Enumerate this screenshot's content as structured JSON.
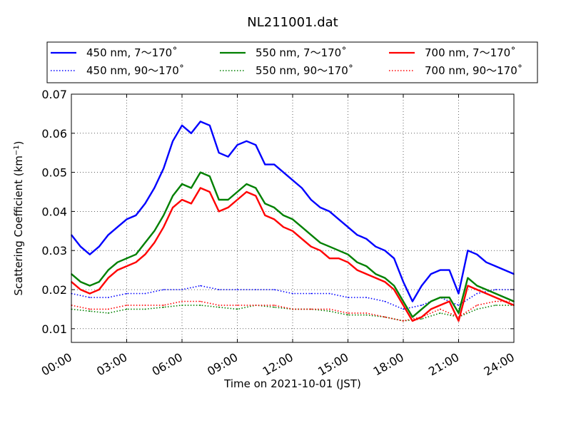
{
  "chart_data": {
    "type": "line",
    "title": "NL211001.dat",
    "xlabel": "Time on 2021-10-01 (JST)",
    "ylabel_main": "Scattering Coefficient (km",
    "ylabel_sup": "−1",
    "ylabel_close": ")",
    "x_axis": {
      "unit": "hour",
      "range": [
        0,
        24
      ],
      "ticks": [
        0,
        3,
        6,
        9,
        12,
        15,
        18,
        21,
        24
      ],
      "tick_labels": [
        "00:00",
        "03:00",
        "06:00",
        "09:00",
        "12:00",
        "15:00",
        "18:00",
        "21:00",
        "24:00"
      ]
    },
    "y_axis": {
      "range": [
        0.0065,
        0.07
      ],
      "ticks": [
        0.01,
        0.02,
        0.03,
        0.04,
        0.05,
        0.06,
        0.07
      ],
      "tick_labels": [
        "0.01",
        "0.02",
        "0.03",
        "0.04",
        "0.05",
        "0.06",
        "0.07"
      ]
    },
    "grid": true,
    "legend": {
      "placement": "top",
      "columns": 3
    },
    "series": [
      {
        "name": "450 nm, 7～170˚",
        "color": "#0000ff",
        "style": "solid",
        "x": [
          0,
          0.5,
          1,
          1.5,
          2,
          2.5,
          3,
          3.5,
          4,
          4.5,
          5,
          5.5,
          6,
          6.5,
          7,
          7.5,
          8,
          8.5,
          9,
          9.5,
          10,
          10.5,
          11,
          11.5,
          12,
          12.5,
          13,
          13.5,
          14,
          14.5,
          15,
          15.5,
          16,
          16.5,
          17,
          17.5,
          18,
          18.5,
          19,
          19.5,
          20,
          20.5,
          21,
          21.5,
          22,
          22.5,
          23,
          23.5,
          24
        ],
        "y": [
          0.034,
          0.031,
          0.029,
          0.031,
          0.034,
          0.036,
          0.038,
          0.039,
          0.042,
          0.046,
          0.051,
          0.058,
          0.062,
          0.06,
          0.063,
          0.062,
          0.055,
          0.054,
          0.057,
          0.058,
          0.057,
          0.052,
          0.052,
          0.05,
          0.048,
          0.046,
          0.043,
          0.041,
          0.04,
          0.038,
          0.036,
          0.034,
          0.033,
          0.031,
          0.03,
          0.028,
          0.022,
          0.017,
          0.021,
          0.024,
          0.025,
          0.025,
          0.019,
          0.03,
          0.029,
          0.027,
          0.026,
          0.025,
          0.024
        ]
      },
      {
        "name": "550 nm, 7～170˚",
        "color": "#008000",
        "style": "solid",
        "x": [
          0,
          0.5,
          1,
          1.5,
          2,
          2.5,
          3,
          3.5,
          4,
          4.5,
          5,
          5.5,
          6,
          6.5,
          7,
          7.5,
          8,
          8.5,
          9,
          9.5,
          10,
          10.5,
          11,
          11.5,
          12,
          12.5,
          13,
          13.5,
          14,
          14.5,
          15,
          15.5,
          16,
          16.5,
          17,
          17.5,
          18,
          18.5,
          19,
          19.5,
          20,
          20.5,
          21,
          21.5,
          22,
          22.5,
          23,
          23.5,
          24
        ],
        "y": [
          0.024,
          0.022,
          0.021,
          0.022,
          0.025,
          0.027,
          0.028,
          0.029,
          0.032,
          0.035,
          0.039,
          0.044,
          0.047,
          0.046,
          0.05,
          0.049,
          0.043,
          0.043,
          0.045,
          0.047,
          0.046,
          0.042,
          0.041,
          0.039,
          0.038,
          0.036,
          0.034,
          0.032,
          0.031,
          0.03,
          0.029,
          0.027,
          0.026,
          0.024,
          0.023,
          0.021,
          0.017,
          0.013,
          0.015,
          0.017,
          0.018,
          0.018,
          0.014,
          0.023,
          0.021,
          0.02,
          0.019,
          0.018,
          0.017
        ]
      },
      {
        "name": "700 nm, 7～170˚",
        "color": "#ff0000",
        "style": "solid",
        "x": [
          0,
          0.5,
          1,
          1.5,
          2,
          2.5,
          3,
          3.5,
          4,
          4.5,
          5,
          5.5,
          6,
          6.5,
          7,
          7.5,
          8,
          8.5,
          9,
          9.5,
          10,
          10.5,
          11,
          11.5,
          12,
          12.5,
          13,
          13.5,
          14,
          14.5,
          15,
          15.5,
          16,
          16.5,
          17,
          17.5,
          18,
          18.5,
          19,
          19.5,
          20,
          20.5,
          21,
          21.5,
          22,
          22.5,
          23,
          23.5,
          24
        ],
        "y": [
          0.022,
          0.02,
          0.019,
          0.02,
          0.023,
          0.025,
          0.026,
          0.027,
          0.029,
          0.032,
          0.036,
          0.041,
          0.043,
          0.042,
          0.046,
          0.045,
          0.04,
          0.041,
          0.043,
          0.045,
          0.044,
          0.039,
          0.038,
          0.036,
          0.035,
          0.033,
          0.031,
          0.03,
          0.028,
          0.028,
          0.027,
          0.025,
          0.024,
          0.023,
          0.022,
          0.02,
          0.016,
          0.012,
          0.013,
          0.015,
          0.016,
          0.017,
          0.012,
          0.021,
          0.02,
          0.019,
          0.018,
          0.017,
          0.016
        ]
      },
      {
        "name": "450 nm, 90～170˚",
        "color": "#0000ff",
        "style": "dotted",
        "x": [
          0,
          1,
          2,
          3,
          4,
          5,
          6,
          7,
          8,
          9,
          10,
          11,
          12,
          13,
          14,
          15,
          16,
          17,
          18,
          19,
          20,
          21,
          22,
          23,
          24
        ],
        "y": [
          0.019,
          0.018,
          0.018,
          0.019,
          0.019,
          0.02,
          0.02,
          0.021,
          0.02,
          0.02,
          0.02,
          0.02,
          0.019,
          0.019,
          0.019,
          0.018,
          0.018,
          0.017,
          0.015,
          0.016,
          0.018,
          0.016,
          0.019,
          0.02,
          0.02
        ]
      },
      {
        "name": "550 nm, 90～170˚",
        "color": "#008000",
        "style": "dotted",
        "x": [
          0,
          1,
          2,
          3,
          4,
          5,
          6,
          7,
          8,
          9,
          10,
          11,
          12,
          13,
          14,
          15,
          16,
          17,
          18,
          19,
          20,
          21,
          22,
          23,
          24
        ],
        "y": [
          0.015,
          0.0145,
          0.014,
          0.015,
          0.015,
          0.0155,
          0.016,
          0.016,
          0.0155,
          0.015,
          0.016,
          0.0155,
          0.015,
          0.015,
          0.0145,
          0.0135,
          0.0135,
          0.013,
          0.012,
          0.0125,
          0.014,
          0.013,
          0.015,
          0.016,
          0.016
        ]
      },
      {
        "name": "700 nm, 90～170˚",
        "color": "#ff0000",
        "style": "dotted",
        "x": [
          0,
          1,
          2,
          3,
          4,
          5,
          6,
          7,
          8,
          9,
          10,
          11,
          12,
          13,
          14,
          15,
          16,
          17,
          18,
          19,
          20,
          21,
          22,
          23,
          24
        ],
        "y": [
          0.016,
          0.015,
          0.015,
          0.016,
          0.016,
          0.016,
          0.017,
          0.017,
          0.016,
          0.016,
          0.016,
          0.016,
          0.015,
          0.015,
          0.015,
          0.014,
          0.014,
          0.013,
          0.012,
          0.013,
          0.015,
          0.013,
          0.016,
          0.017,
          0.017
        ]
      }
    ]
  }
}
